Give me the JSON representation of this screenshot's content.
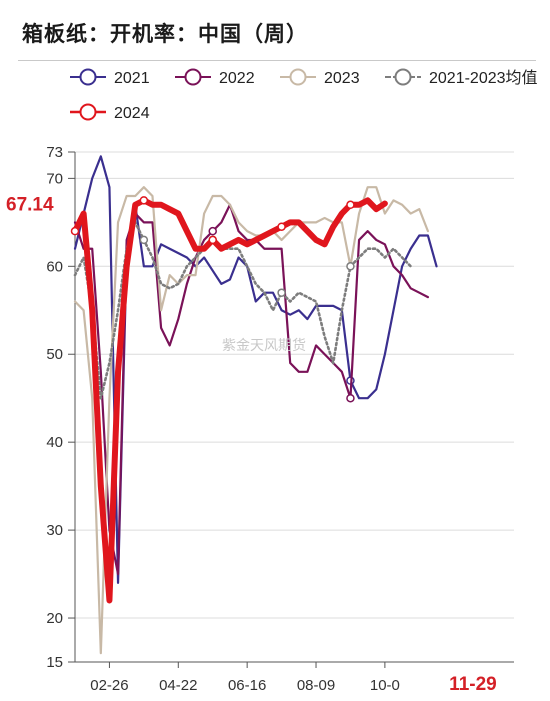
{
  "title": "箱板纸：开机率：中国（周）",
  "watermark": "紫金天风期货",
  "chart_data": {
    "type": "line",
    "ylim": [
      15,
      73
    ],
    "y_ticks": [
      15,
      20,
      30,
      40,
      50,
      60,
      70,
      73
    ],
    "x_tick_labels": [
      "02-26",
      "04-22",
      "06-16",
      "08-09",
      "10-0",
      "11-29"
    ],
    "x_tick_weeks": [
      4,
      12,
      20,
      28,
      36,
      46
    ],
    "grid": true,
    "legend_position": "top",
    "last_value_label": "67.14",
    "series": [
      {
        "name": "2021",
        "color": "#3a2f8f",
        "width": 2.2,
        "dash": "",
        "markers": [
          32
        ],
        "values": [
          62,
          66,
          70,
          72.5,
          69,
          24,
          61,
          67,
          60,
          60,
          62.5,
          62,
          61.5,
          61,
          60,
          61,
          59.5,
          58,
          58.5,
          61,
          60,
          56,
          57,
          57,
          55,
          54.5,
          55,
          54,
          55.5,
          55.5,
          55.5,
          55,
          47,
          45,
          45,
          46,
          50,
          55,
          60,
          62,
          63.5,
          63.5,
          60
        ]
      },
      {
        "name": "2022",
        "color": "#7a1258",
        "width": 2.2,
        "dash": "",
        "markers": [
          16,
          32,
          46
        ],
        "values": [
          65,
          62,
          62,
          48,
          30,
          25,
          63,
          66,
          65,
          65,
          53,
          51,
          54,
          58,
          61,
          63,
          64,
          65,
          67,
          64,
          63,
          63,
          62,
          62,
          62,
          49,
          48,
          48,
          51,
          50,
          49,
          48,
          45,
          63,
          64,
          63,
          62.5,
          60,
          59,
          57.5,
          57,
          56.5
        ]
      },
      {
        "name": "2023",
        "color": "#c8b9a6",
        "width": 2.2,
        "dash": "",
        "markers": [],
        "values": [
          56,
          55,
          45,
          16,
          45,
          65,
          68,
          68,
          69,
          68,
          55,
          59,
          58,
          59,
          59,
          66,
          68,
          68,
          67,
          65,
          64,
          63.5,
          63.5,
          64,
          63,
          64,
          65,
          65,
          65,
          65.5,
          65,
          65,
          60,
          66,
          69,
          69,
          66,
          67.5,
          67,
          66,
          66.5,
          64
        ]
      },
      {
        "name": "2021-2023均值",
        "color": "#7d7d7d",
        "width": 2.6,
        "dash": "2,3",
        "markers": [
          8,
          16,
          24,
          32,
          46
        ],
        "values": [
          59,
          61,
          55,
          45,
          49,
          55,
          62,
          65,
          63,
          61,
          58,
          57.5,
          58,
          60,
          61,
          62,
          63,
          62,
          62,
          62,
          60,
          58,
          57,
          55,
          57,
          56,
          57,
          56.5,
          56,
          52,
          49,
          55,
          60,
          61,
          62,
          62,
          61,
          62,
          61,
          60
        ]
      },
      {
        "name": "2024",
        "color": "#e0161d",
        "width": 6,
        "dash": "",
        "markers": [
          0,
          8,
          16,
          24,
          32,
          46
        ],
        "values": [
          64,
          66,
          55,
          35,
          22,
          48,
          60,
          67,
          67.5,
          67,
          67,
          66.5,
          66,
          64,
          62,
          62,
          63,
          62,
          62.5,
          63,
          62.5,
          63,
          63.5,
          64,
          64.5,
          65,
          65,
          64,
          63,
          62.5,
          64.5,
          66,
          67,
          67,
          67.5,
          66.5,
          67.14
        ]
      }
    ]
  }
}
